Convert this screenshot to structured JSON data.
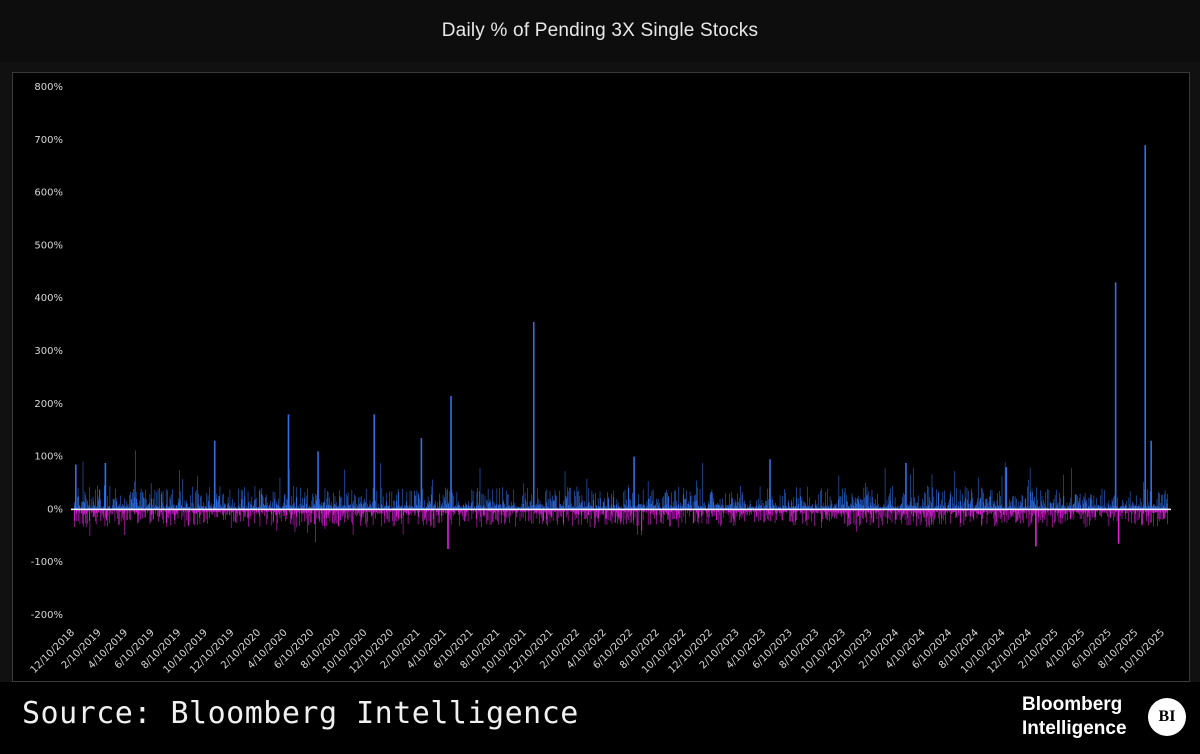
{
  "header": {
    "title": "Daily % of Pending 3X Single Stocks"
  },
  "footer": {
    "source": "Source: Bloomberg Intelligence",
    "brand_line1": "Bloomberg",
    "brand_line2": "Intelligence",
    "brand_badge": "BI"
  },
  "colors": {
    "positive_bars": "#2f6fe8",
    "negative_bars": "#e020e0",
    "zero_line": "#ffffff",
    "background": "#000000"
  },
  "chart_data": {
    "type": "bar",
    "title": "Daily % of Pending 3X Single Stocks",
    "xlabel": "",
    "ylabel": "",
    "ylim": [
      -200,
      800
    ],
    "y_ticks": [
      "800%",
      "700%",
      "600%",
      "500%",
      "400%",
      "300%",
      "200%",
      "100%",
      "0%",
      "-100%",
      "-200%"
    ],
    "y_tick_values": [
      800,
      700,
      600,
      500,
      400,
      300,
      200,
      100,
      0,
      -100,
      -200
    ],
    "x_tick_labels": [
      "12/10/2018",
      "2/10/2019",
      "4/10/2019",
      "6/10/2019",
      "8/10/2019",
      "10/10/2019",
      "12/10/2019",
      "2/10/2020",
      "4/10/2020",
      "6/10/2020",
      "8/10/2020",
      "10/10/2020",
      "12/10/2020",
      "2/10/2021",
      "4/10/2021",
      "6/10/2021",
      "8/10/2021",
      "10/10/2021",
      "12/10/2021",
      "2/10/2022",
      "4/10/2022",
      "6/10/2022",
      "8/10/2022",
      "10/10/2022",
      "12/10/2022",
      "2/10/2023",
      "4/10/2023",
      "6/10/2023",
      "8/10/2023",
      "10/10/2023",
      "12/10/2023",
      "2/10/2024",
      "4/10/2024",
      "6/10/2024",
      "8/10/2024",
      "10/10/2024",
      "12/10/2024",
      "2/10/2025",
      "4/10/2025",
      "6/10/2025",
      "8/10/2025",
      "10/10/2025"
    ],
    "grid": false,
    "legend": "none",
    "series": [
      {
        "color": "#2f6fe8",
        "notable_spikes": [
          {
            "date": "12/10/2018",
            "value": 85
          },
          {
            "date": "2/10/2019",
            "value": 88
          },
          {
            "date": "10/10/2019",
            "value": 130
          },
          {
            "date": "4/10/2020",
            "value": 180
          },
          {
            "date": "6/10/2020",
            "value": 110
          },
          {
            "date": "10/10/2020",
            "value": 180
          },
          {
            "date": "2/10/2021",
            "value": 135
          },
          {
            "date": "4/10/2021",
            "value": 215
          },
          {
            "date": "10/10/2021",
            "value": 355
          },
          {
            "date": "6/10/2022",
            "value": 100
          },
          {
            "date": "4/10/2023",
            "value": 95
          },
          {
            "date": "2/10/2024",
            "value": 88
          },
          {
            "date": "10/10/2024",
            "value": 80
          },
          {
            "date": "6/10/2025",
            "value": 430
          },
          {
            "date": "8/10/2025",
            "value": 690
          },
          {
            "date": "8/10/2025",
            "value": 130
          }
        ]
      },
      {
        "color": "#e020e0",
        "notable_spikes": [
          {
            "date": "4/10/2021",
            "value": -75
          },
          {
            "date": "12/10/2024",
            "value": -70
          },
          {
            "date": "6/10/2025",
            "value": -65
          }
        ]
      }
    ]
  }
}
